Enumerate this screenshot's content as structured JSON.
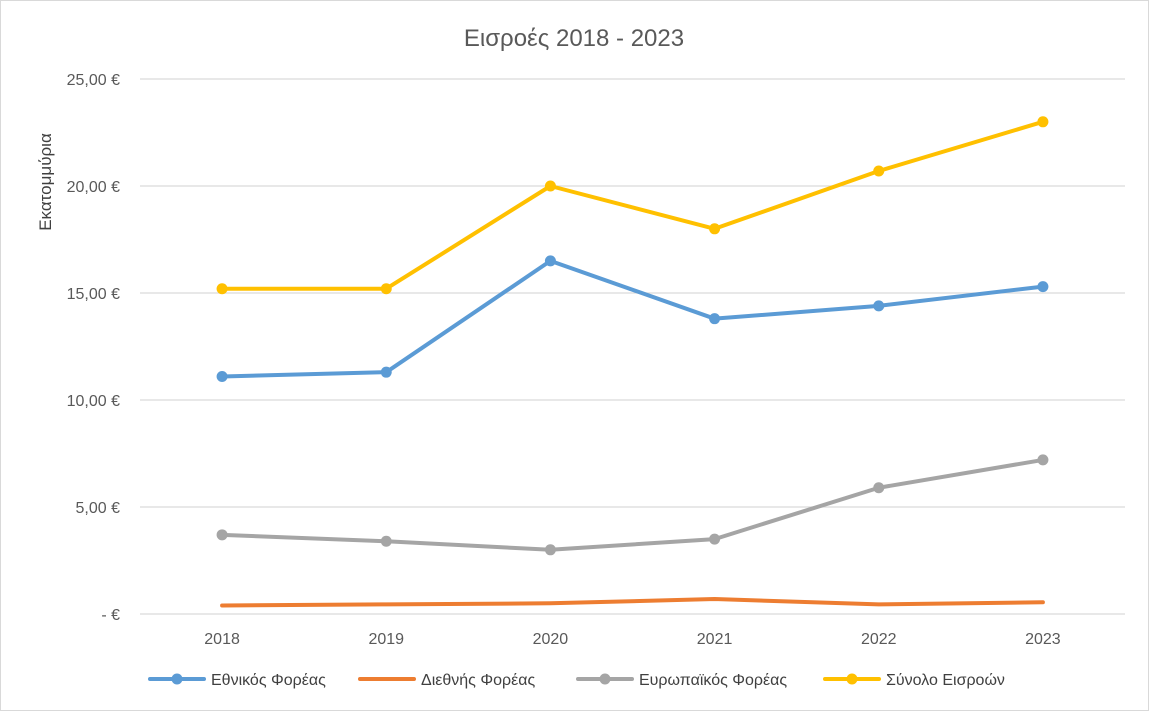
{
  "chart_data": {
    "type": "line",
    "title": "Εισροές 2018 - 2023",
    "xlabel": "",
    "ylabel": "Εκατομμύρια",
    "ylim": [
      0,
      25
    ],
    "yticks": [
      0,
      5,
      10,
      15,
      20,
      25
    ],
    "ytick_labels": [
      "-  €",
      "5,00 €",
      "10,00 €",
      "15,00 €",
      "20,00 €",
      "25,00 €"
    ],
    "categories": [
      "2018",
      "2019",
      "2020",
      "2021",
      "2022",
      "2023"
    ],
    "grid": true,
    "legend_position": "bottom",
    "series": [
      {
        "name": "Εθνικός Φορέας",
        "color": "#5b9bd5",
        "markers": true,
        "values": [
          11.1,
          11.3,
          16.5,
          13.8,
          14.4,
          15.3
        ]
      },
      {
        "name": "Διεθνής Φορέας",
        "color": "#ed7d31",
        "markers": false,
        "values": [
          0.4,
          0.45,
          0.5,
          0.7,
          0.45,
          0.55
        ]
      },
      {
        "name": "Ευρωπαϊκός Φορέας",
        "color": "#a5a5a5",
        "markers": true,
        "values": [
          3.7,
          3.4,
          3.0,
          3.5,
          5.9,
          7.2
        ]
      },
      {
        "name": "Σύνολο Εισροών",
        "color": "#ffc000",
        "markers": true,
        "values": [
          15.2,
          15.2,
          20.0,
          18.0,
          20.7,
          23.0
        ]
      }
    ]
  }
}
